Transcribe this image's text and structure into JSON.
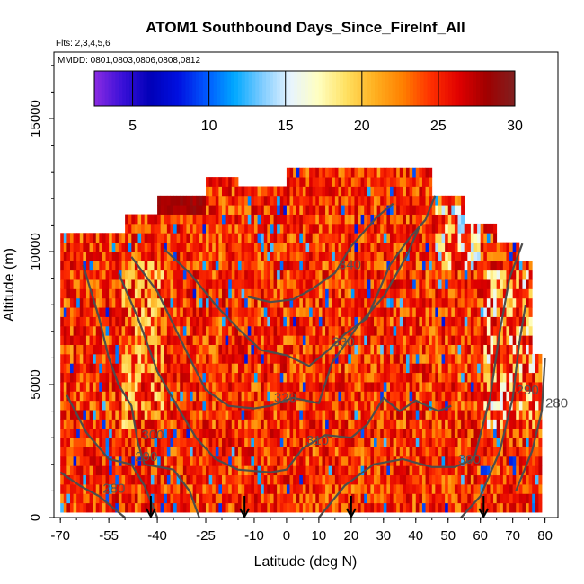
{
  "chart_data": {
    "type": "heatmap",
    "title": "ATOM1 Southbound Days_Since_FireInf_All",
    "flights_note": "Flts: 2,3,4,5,6",
    "dates_note": "MMDD: 0801,0803,0806,0808,0812",
    "xlabel": "Latitude (deg N)",
    "ylabel": "Altitude (m)",
    "xlim": [
      -72,
      84
    ],
    "ylim": [
      0,
      17500
    ],
    "x_ticks": [
      -70,
      -55,
      -40,
      -25,
      -10,
      0,
      10,
      20,
      30,
      40,
      50,
      60,
      70,
      80
    ],
    "x_tick_labels": [
      "-70",
      "-55",
      "-40",
      "-25",
      "-10",
      "0",
      "10",
      "20",
      "30",
      "40",
      "50",
      "60",
      "70",
      "80"
    ],
    "y_ticks": [
      0,
      5000,
      10000,
      15000
    ],
    "y_tick_labels": [
      "0",
      "5000",
      "10000",
      "15000"
    ],
    "colorbar": {
      "min": 2.5,
      "max": 30,
      "ticks": [
        5,
        10,
        15,
        20,
        25,
        30
      ],
      "tick_labels": [
        "5",
        "10",
        "15",
        "20",
        "25",
        "30"
      ],
      "colors": [
        "#8a2be2",
        "#3a10d8",
        "#0000b8",
        "#0010e0",
        "#0058ff",
        "#00a8ff",
        "#80ccff",
        "#e8f4ff",
        "#ffffc0",
        "#ffe060",
        "#ffb020",
        "#ff8000",
        "#ff3000",
        "#e00000",
        "#a00000",
        "#802020"
      ]
    },
    "contours": [
      {
        "label": "280",
        "points": [
          [
            -70,
            1700
          ],
          [
            -64,
            1200
          ],
          [
            -58,
            800
          ],
          [
            -53,
            300
          ],
          [
            -50,
            0
          ]
        ]
      },
      {
        "label": "280",
        "points": [
          [
            71,
            1000
          ],
          [
            76,
            2500
          ],
          [
            79,
            4000
          ],
          [
            80,
            6000
          ]
        ]
      },
      {
        "label": "290",
        "points": [
          [
            -68,
            4600
          ],
          [
            -62,
            3200
          ],
          [
            -55,
            2200
          ],
          [
            -48,
            2000
          ],
          [
            -44,
            1200
          ],
          [
            -40,
            0
          ]
        ]
      },
      {
        "label": "290",
        "points": [
          [
            54,
            0
          ],
          [
            60,
            800
          ],
          [
            66,
            2500
          ],
          [
            70,
            4500
          ],
          [
            72,
            6500
          ],
          [
            74,
            8000
          ]
        ]
      },
      {
        "label": "300",
        "points": [
          [
            -63,
            9500
          ],
          [
            -58,
            7500
          ],
          [
            -55,
            6000
          ],
          [
            -52,
            5000
          ],
          [
            -48,
            4200
          ],
          [
            -46,
            2800
          ],
          [
            -44,
            2000
          ],
          [
            -35,
            1800
          ],
          [
            -30,
            1000
          ],
          [
            -27,
            0
          ]
        ]
      },
      {
        "label": "300",
        "points": [
          [
            10,
            0
          ],
          [
            18,
            1200
          ],
          [
            27,
            2000
          ],
          [
            36,
            2200
          ],
          [
            45,
            1900
          ],
          [
            52,
            1900
          ],
          [
            58,
            2200
          ],
          [
            63,
            4500
          ],
          [
            66,
            7000
          ],
          [
            69,
            9000
          ],
          [
            73,
            10300
          ]
        ]
      },
      {
        "label": "310",
        "points": [
          [
            -52,
            9200
          ],
          [
            -46,
            7500
          ],
          [
            -40,
            5500
          ],
          [
            -33,
            4000
          ],
          [
            -28,
            3000
          ],
          [
            -22,
            2200
          ],
          [
            -15,
            1800
          ],
          [
            -5,
            1700
          ],
          [
            0,
            1800
          ],
          [
            5,
            2600
          ],
          [
            12,
            3100
          ],
          [
            20,
            3000
          ],
          [
            25,
            3500
          ],
          [
            30,
            4500
          ],
          [
            35,
            4000
          ],
          [
            40,
            4400
          ],
          [
            47,
            4000
          ],
          [
            51,
            4200
          ]
        ]
      },
      {
        "label": "320",
        "points": [
          [
            -48,
            9800
          ],
          [
            -40,
            8500
          ],
          [
            -34,
            7000
          ],
          [
            -30,
            6000
          ],
          [
            -25,
            4800
          ],
          [
            -18,
            4200
          ],
          [
            -10,
            4100
          ],
          [
            -5,
            4200
          ],
          [
            2,
            4500
          ],
          [
            10,
            4300
          ],
          [
            14,
            5800
          ],
          [
            22,
            7200
          ],
          [
            30,
            8300
          ],
          [
            37,
            9800
          ],
          [
            41,
            10900
          ]
        ]
      },
      {
        "label": "330",
        "points": [
          [
            -38,
            10100
          ],
          [
            -30,
            9200
          ],
          [
            -22,
            8000
          ],
          [
            -15,
            7100
          ],
          [
            -8,
            6300
          ],
          [
            0,
            6100
          ],
          [
            7,
            5700
          ],
          [
            13,
            6300
          ],
          [
            18,
            6900
          ],
          [
            25,
            7500
          ],
          [
            32,
            9500
          ],
          [
            38,
            10500
          ],
          [
            43,
            11200
          ],
          [
            46,
            12100
          ]
        ]
      },
      {
        "label": "340",
        "points": [
          [
            -12,
            8300
          ],
          [
            -5,
            8100
          ],
          [
            2,
            8200
          ],
          [
            8,
            8600
          ],
          [
            15,
            9200
          ],
          [
            20,
            10200
          ],
          [
            28,
            11300
          ],
          [
            33,
            11800
          ]
        ]
      }
    ],
    "arrows_latitude": [
      -42,
      -13,
      20,
      61
    ]
  }
}
